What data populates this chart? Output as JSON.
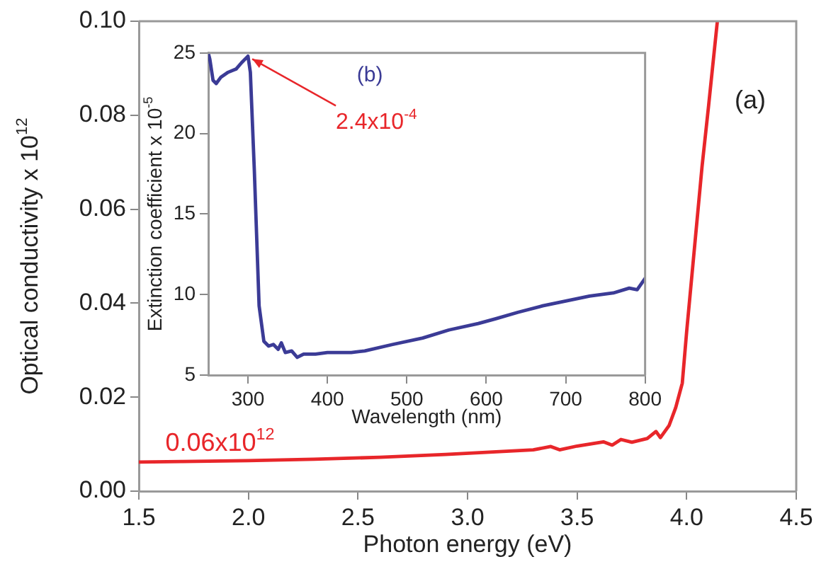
{
  "chart_data": [
    {
      "type": "line",
      "xlabel": "Photon energy (eV)",
      "ylabel": "Optical conductivity x 10$^{12}$",
      "x": [
        1.5,
        1.7,
        2.0,
        2.3,
        2.6,
        2.9,
        3.1,
        3.3,
        3.38,
        3.42,
        3.5,
        3.62,
        3.66,
        3.7,
        3.75,
        3.82,
        3.86,
        3.88,
        3.92,
        3.95,
        3.98,
        4.0,
        4.04,
        4.07,
        4.1,
        4.14
      ],
      "series": [
        {
          "color": "#e8262a",
          "values": [
            0.0062,
            0.0063,
            0.0065,
            0.0068,
            0.0072,
            0.0078,
            0.0083,
            0.0088,
            0.0095,
            0.0088,
            0.0096,
            0.0105,
            0.0098,
            0.011,
            0.0104,
            0.0112,
            0.0127,
            0.0114,
            0.014,
            0.0178,
            0.023,
            0.034,
            0.054,
            0.069,
            0.082,
            0.1
          ]
        }
      ],
      "xlim": [
        1.5,
        4.5
      ],
      "xticks": [
        1.5,
        {
          "value": 2,
          "label": "2.0"
        },
        2.5,
        {
          "value": 3,
          "label": "3.0"
        },
        3.5,
        {
          "value": 4,
          "label": "4.0"
        },
        4.5
      ],
      "ylim": [
        0,
        0.1
      ],
      "yticks": [
        {
          "value": 0,
          "label": "0.00"
        },
        {
          "value": 0.02,
          "label": "0.02"
        },
        {
          "value": 0.04,
          "label": "0.04"
        },
        {
          "value": 0.06,
          "label": "0.06"
        },
        {
          "value": 0.08,
          "label": "0.08"
        },
        {
          "value": 0.1,
          "label": "0.10"
        }
      ],
      "grid": false,
      "legend": false,
      "marker": "none",
      "line_style": "solid",
      "annotations": [
        "(a)",
        {
          "text": "0.06x10$^{12}$",
          "x": 1.87,
          "y": 0.0064
        }
      ]
    },
    {
      "type": "line",
      "xlabel": "Wavelength (nm)",
      "ylabel": "Extinction coefficient x 10$^{-5}$",
      "x": [
        250,
        252,
        256,
        260,
        266,
        275,
        285,
        292,
        298,
        300,
        303,
        308,
        314,
        320,
        326,
        332,
        338,
        342,
        347,
        355,
        362,
        370,
        385,
        400,
        430,
        447,
        482,
        520,
        553,
        590,
        612,
        640,
        671,
        700,
        730,
        760,
        780,
        790,
        800
      ],
      "series": [
        {
          "color": "#3b3b96",
          "values": [
            25,
            24.6,
            23.3,
            23.1,
            23.5,
            23.8,
            24.0,
            24.4,
            24.7,
            24.8,
            23.8,
            17.7,
            9.3,
            7.1,
            6.8,
            6.9,
            6.6,
            7.0,
            6.4,
            6.5,
            6.1,
            6.3,
            6.3,
            6.4,
            6.4,
            6.5,
            6.9,
            7.3,
            7.8,
            8.2,
            8.5,
            8.9,
            9.3,
            9.6,
            9.9,
            10.1,
            10.4,
            10.3,
            11.0
          ]
        }
      ],
      "xlim": [
        250,
        800
      ],
      "xticks": [
        300,
        400,
        500,
        600,
        700,
        800
      ],
      "ylim": [
        5,
        25
      ],
      "yticks": [
        5,
        10,
        15,
        20,
        25
      ],
      "grid": false,
      "legend": false,
      "marker": "none",
      "line_style": "solid",
      "annotations": [
        "(b)",
        {
          "text": "2.4x10$^{-4}$",
          "x": 300,
          "y": 24.8
        }
      ]
    }
  ]
}
